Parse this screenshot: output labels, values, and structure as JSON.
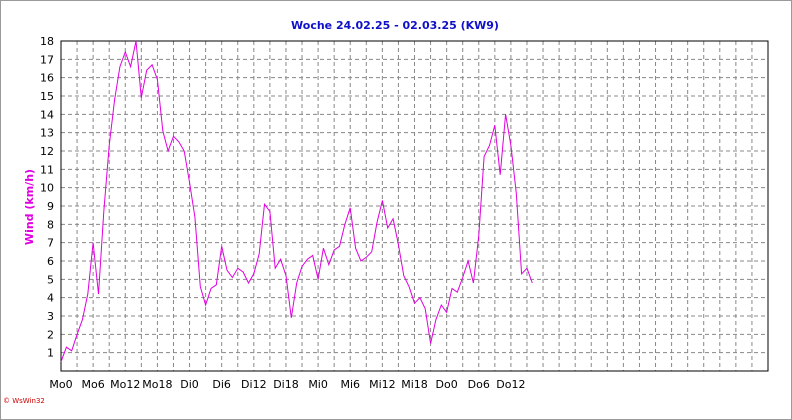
{
  "chart_data": {
    "type": "line",
    "title": "Woche 24.02.25 - 02.03.25 (KW9)",
    "xlabel": "",
    "ylabel": "Wind (km/h)",
    "ylim": [
      0,
      18
    ],
    "xlim": [
      0,
      132
    ],
    "y_ticks": [
      1,
      2,
      3,
      4,
      5,
      6,
      7,
      8,
      9,
      10,
      11,
      12,
      13,
      14,
      15,
      16,
      17,
      18
    ],
    "x_ticks": [
      {
        "pos": 0,
        "label": "Mo0"
      },
      {
        "pos": 6,
        "label": "Mo6"
      },
      {
        "pos": 12,
        "label": "Mo12"
      },
      {
        "pos": 18,
        "label": "Mo18"
      },
      {
        "pos": 24,
        "label": "Di0"
      },
      {
        "pos": 30,
        "label": "Di6"
      },
      {
        "pos": 36,
        "label": "Di12"
      },
      {
        "pos": 42,
        "label": "Di18"
      },
      {
        "pos": 48,
        "label": "Mi0"
      },
      {
        "pos": 54,
        "label": "Mi6"
      },
      {
        "pos": 60,
        "label": "Mi12"
      },
      {
        "pos": 66,
        "label": "Mi18"
      },
      {
        "pos": 72,
        "label": "Do0"
      },
      {
        "pos": 78,
        "label": "Do6"
      },
      {
        "pos": 84,
        "label": "Do12"
      }
    ],
    "grid": true,
    "line_color": "#e000e0",
    "series": [
      {
        "x": [
          0,
          1,
          2,
          3,
          4,
          5,
          6,
          7,
          8,
          9,
          10,
          11,
          12,
          13,
          14,
          15,
          16,
          17,
          18,
          19,
          20,
          21,
          22,
          23,
          24,
          25,
          26,
          27,
          28,
          29,
          30,
          31,
          32,
          33,
          34,
          35,
          36,
          37,
          38,
          39,
          40,
          41,
          42,
          43,
          44,
          45,
          46,
          47,
          48,
          49,
          50,
          51,
          52,
          53,
          54,
          55,
          56,
          57,
          58,
          59,
          60,
          61,
          62,
          63,
          64,
          65,
          66,
          67,
          68,
          69,
          70,
          71,
          72,
          73,
          74,
          75,
          76,
          77,
          78,
          79,
          80,
          81,
          82,
          83,
          84,
          85,
          86,
          87,
          88
        ],
        "values": [
          0.5,
          1.3,
          1.1,
          2.0,
          2.8,
          4.2,
          7.0,
          4.2,
          8.7,
          12.3,
          14.8,
          16.6,
          17.4,
          16.6,
          18.0,
          14.9,
          16.4,
          16.7,
          15.9,
          13.1,
          12.0,
          12.8,
          12.5,
          12.0,
          10.3,
          8.4,
          4.6,
          3.6,
          4.5,
          4.7,
          6.8,
          5.5,
          5.1,
          5.6,
          5.4,
          4.8,
          5.3,
          6.4,
          9.1,
          8.7,
          5.6,
          6.1,
          5.2,
          2.9,
          4.8,
          5.7,
          6.1,
          6.3,
          5.0,
          6.7,
          5.8,
          6.6,
          6.8,
          8.0,
          8.9,
          6.7,
          6.0,
          6.2,
          6.5,
          8.1,
          9.3,
          7.8,
          8.3,
          6.9,
          5.2,
          4.6,
          3.7,
          4.0,
          3.4,
          1.5,
          2.8,
          3.6,
          3.2,
          4.5,
          4.3,
          5.1,
          6.0,
          4.8,
          7.4,
          11.7,
          12.3,
          13.4,
          10.7,
          14.0,
          12.3,
          9.7,
          5.3,
          5.6,
          4.8
        ]
      }
    ],
    "watermark": "© WsWin32"
  }
}
